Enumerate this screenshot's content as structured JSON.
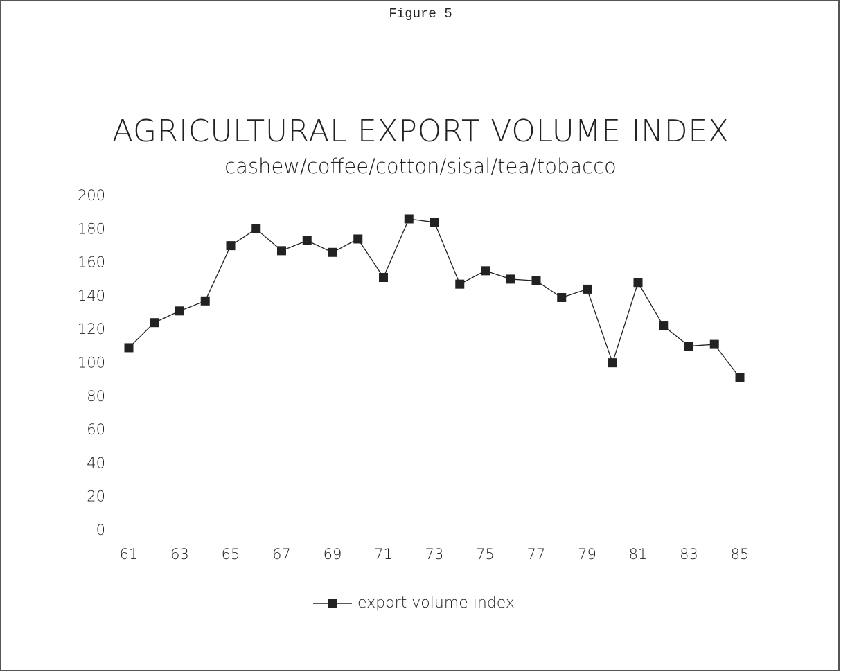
{
  "chart_data": {
    "type": "line",
    "figure_label": "Figure 5",
    "title": "AGRICULTURAL EXPORT VOLUME INDEX",
    "subtitle": "cashew/coffee/cotton/sisal/tea/tobacco",
    "categories": [
      "61",
      null,
      "63",
      null,
      "65",
      null,
      "67",
      null,
      "69",
      null,
      "71",
      null,
      "73",
      null,
      "75",
      null,
      "77",
      null,
      "79",
      null,
      "81",
      null,
      "83",
      null,
      "85"
    ],
    "series": [
      {
        "name": "export volume index",
        "color": "#222222",
        "values": [
          111,
          126,
          133,
          139,
          172,
          182,
          169,
          175,
          168,
          176,
          153,
          188,
          186,
          149,
          157,
          152,
          151,
          141,
          146,
          102,
          150,
          124,
          112,
          113,
          93
        ]
      }
    ],
    "ylim": [
      0,
      200
    ],
    "yticks": [
      0,
      20,
      40,
      60,
      80,
      100,
      120,
      140,
      160,
      180,
      200
    ],
    "grid": false,
    "legend": "bottom"
  }
}
